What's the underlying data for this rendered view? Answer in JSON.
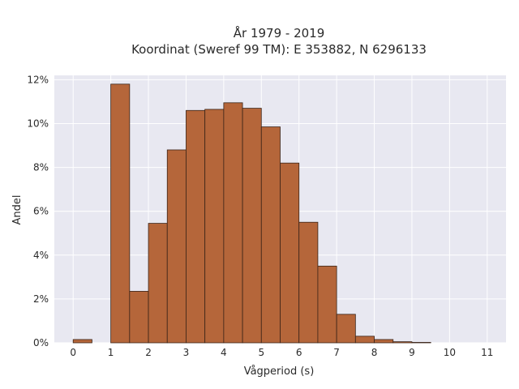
{
  "chart_data": {
    "type": "bar",
    "title_line1": "År 1979 - 2019",
    "title_line2": "Koordinat (Sweref 99 TM): E 353882, N 6296133",
    "xlabel": "Vågperiod (s)",
    "ylabel": "Andel",
    "bin_width": 0.5,
    "bins": [
      {
        "x0": 0.0,
        "value": 0.15
      },
      {
        "x0": 0.5,
        "value": 0.0
      },
      {
        "x0": 1.0,
        "value": 11.8
      },
      {
        "x0": 1.5,
        "value": 2.35
      },
      {
        "x0": 2.0,
        "value": 5.45
      },
      {
        "x0": 2.5,
        "value": 8.8
      },
      {
        "x0": 3.0,
        "value": 10.6
      },
      {
        "x0": 3.5,
        "value": 10.65
      },
      {
        "x0": 4.0,
        "value": 10.95
      },
      {
        "x0": 4.5,
        "value": 10.7
      },
      {
        "x0": 5.0,
        "value": 9.85
      },
      {
        "x0": 5.5,
        "value": 8.2
      },
      {
        "x0": 6.0,
        "value": 5.5
      },
      {
        "x0": 6.5,
        "value": 3.5
      },
      {
        "x0": 7.0,
        "value": 1.3
      },
      {
        "x0": 7.5,
        "value": 0.3
      },
      {
        "x0": 8.0,
        "value": 0.15
      },
      {
        "x0": 8.5,
        "value": 0.05
      },
      {
        "x0": 9.0,
        "value": 0.02
      }
    ],
    "xlim": [
      -0.5,
      11.5
    ],
    "ylim": [
      0,
      12.2
    ],
    "xticks": [
      0,
      1,
      2,
      3,
      4,
      5,
      6,
      7,
      8,
      9,
      10,
      11
    ],
    "yticks": [
      0,
      2,
      4,
      6,
      8,
      10,
      12
    ],
    "ytick_suffix": "%",
    "grid": true,
    "colors": {
      "plot_bg": "#e8e8f1",
      "grid": "#ffffff",
      "bar_fill": "#b5663a",
      "bar_edge": "#3a2418"
    }
  }
}
